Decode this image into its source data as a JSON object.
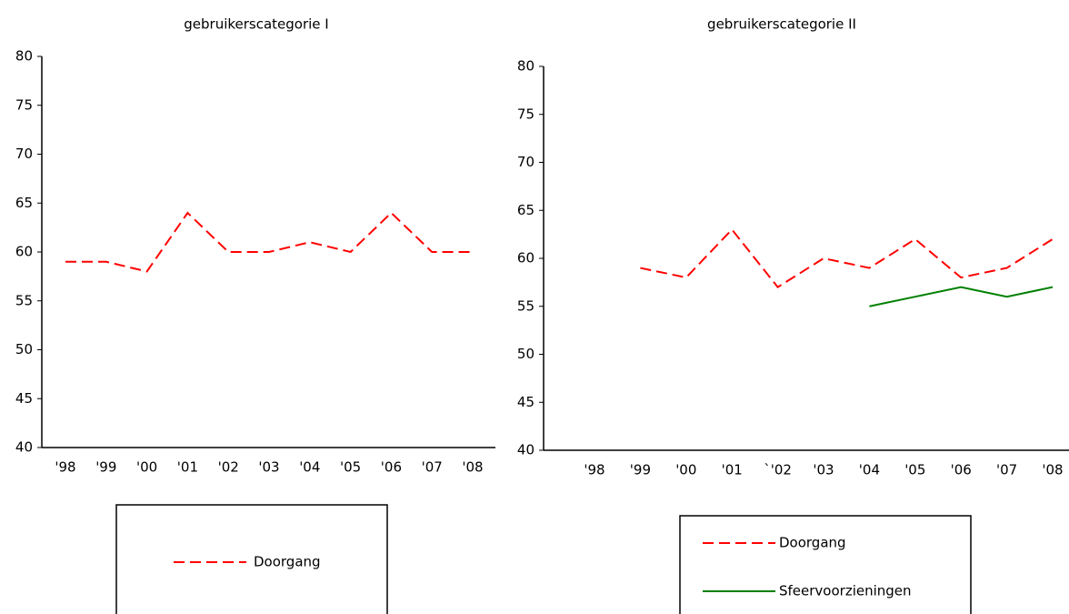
{
  "chart_data": [
    {
      "type": "line",
      "title": "gebruikerscategorie I",
      "categories": [
        "'98",
        "'99",
        "'00",
        "'01",
        "'02",
        "'03",
        "'04",
        "'05",
        "'06",
        "'07",
        "'08"
      ],
      "series": [
        {
          "name": "Doorgang",
          "color": "#ff0000",
          "line_style": "dashed",
          "values": [
            59,
            59,
            58,
            64,
            60,
            60,
            61,
            60,
            64,
            60,
            60
          ]
        }
      ],
      "ylim": [
        40,
        80
      ],
      "yticks": [
        40,
        45,
        50,
        55,
        60,
        65,
        70,
        75,
        80
      ],
      "legend": "bottom"
    },
    {
      "type": "line",
      "title": "gebruikerscategorie II",
      "categories": [
        "'98",
        "'99",
        "'00",
        "'01",
        "`'02",
        "'03",
        "'04",
        "'05",
        "'06",
        "'07",
        "'08"
      ],
      "series": [
        {
          "name": "Doorgang",
          "color": "#ff0000",
          "line_style": "dashed",
          "values": [
            null,
            59,
            58,
            63,
            57,
            60,
            59,
            62,
            58,
            59,
            62
          ]
        },
        {
          "name": "Sfeervoorzieningen",
          "color": "#008000",
          "line_style": "solid",
          "values": [
            null,
            null,
            null,
            null,
            null,
            null,
            55,
            56,
            57,
            56,
            57
          ]
        }
      ],
      "ylim": [
        40,
        80
      ],
      "yticks": [
        40,
        45,
        50,
        55,
        60,
        65,
        70,
        75,
        80
      ],
      "legend": "bottom"
    }
  ]
}
